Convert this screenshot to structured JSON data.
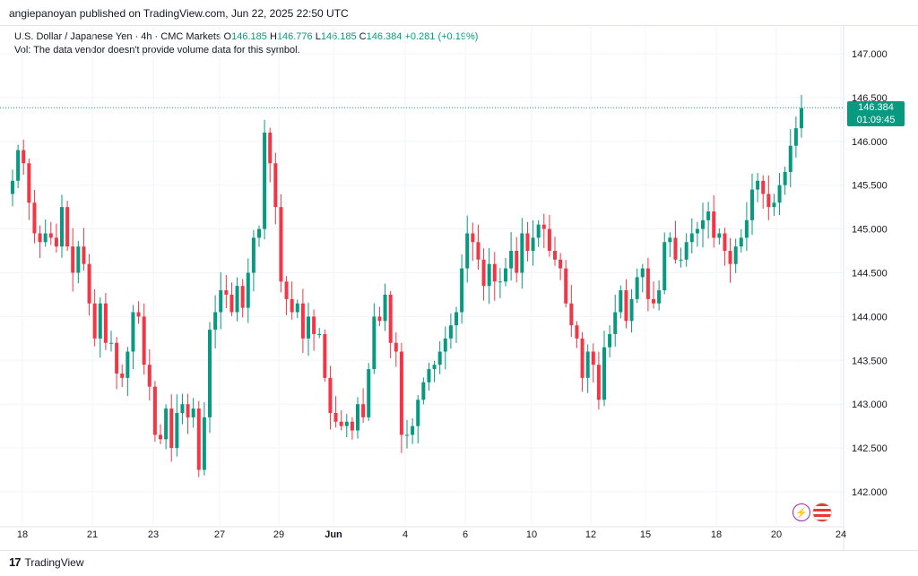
{
  "header": {
    "publisher": "angiepanoyan published on TradingView.com, Jun 22, 2025 22:50 UTC"
  },
  "legend": {
    "symbol": "U.S. Dollar / Japanese Yen · 4h · CMC Markets",
    "o_label": "O",
    "o_value": "146.185",
    "h_label": "H",
    "h_value": "146.776",
    "l_label": "L",
    "l_value": "146.185",
    "c_label": "C",
    "c_value": "146.384",
    "change": "+0.281 (+0.19%)",
    "volume_note": "Vol: The data vendor doesn't provide volume data for this symbol."
  },
  "price_label": {
    "price": "146.384",
    "countdown": "01:09:45"
  },
  "footer": {
    "brand": "TradingView",
    "logo": "17"
  },
  "colors": {
    "up": "#089981",
    "down": "#f23645",
    "grid": "#f0f3fa",
    "text": "#131722"
  },
  "icons": [
    "lightning-icon",
    "us-flag-icon"
  ],
  "chart_data": {
    "type": "candlestick",
    "y_ticks": [
      "147.000",
      "146.500",
      "146.000",
      "145.500",
      "145.000",
      "144.500",
      "144.000",
      "143.500",
      "143.000",
      "142.500",
      "142.000"
    ],
    "x_ticks": [
      "18",
      "21",
      "23",
      "27",
      "29",
      "Jun",
      "4",
      "6",
      "10",
      "12",
      "15",
      "18",
      "20",
      "24"
    ],
    "ylim": [
      141.8,
      147.3
    ],
    "last_price": 146.384,
    "grid": true,
    "closes": [
      145.55,
      145.9,
      145.75,
      145.3,
      144.95,
      144.85,
      144.95,
      144.9,
      144.8,
      145.25,
      144.8,
      144.5,
      144.8,
      144.6,
      144.15,
      143.75,
      144.15,
      143.7,
      143.7,
      143.35,
      143.3,
      143.6,
      144.05,
      144.0,
      143.45,
      143.2,
      142.65,
      142.6,
      142.95,
      142.5,
      142.9,
      143.0,
      142.85,
      142.95,
      142.25,
      142.85,
      143.85,
      144.05,
      144.3,
      144.25,
      144.05,
      144.35,
      144.1,
      144.5,
      144.9,
      145.0,
      146.1,
      145.75,
      145.25,
      144.4,
      144.2,
      144.05,
      144.15,
      143.75,
      144.0,
      143.8,
      143.8,
      143.3,
      142.9,
      142.8,
      142.75,
      142.8,
      142.7,
      143.0,
      142.85,
      143.4,
      144.0,
      143.95,
      144.25,
      143.7,
      143.6,
      142.65,
      142.65,
      142.75,
      143.05,
      143.25,
      143.4,
      143.45,
      143.6,
      143.75,
      143.9,
      144.05,
      144.55,
      144.95,
      144.85,
      144.65,
      144.35,
      144.6,
      144.4,
      144.4,
      144.55,
      144.75,
      144.5,
      144.95,
      144.75,
      144.9,
      145.05,
      145.0,
      144.75,
      144.65,
      144.55,
      144.15,
      143.9,
      143.75,
      143.3,
      143.6,
      143.45,
      143.05,
      143.65,
      143.8,
      144.05,
      144.3,
      143.95,
      144.2,
      144.45,
      144.55,
      144.2,
      144.15,
      144.3,
      144.85,
      144.9,
      144.65,
      144.65,
      144.85,
      144.95,
      145.0,
      145.1,
      145.2,
      144.9,
      144.95,
      144.75,
      144.6,
      144.8,
      144.9,
      145.1,
      145.45,
      145.55,
      145.4,
      145.25,
      145.3,
      145.5,
      145.65,
      145.95,
      146.15,
      146.38
    ]
  }
}
